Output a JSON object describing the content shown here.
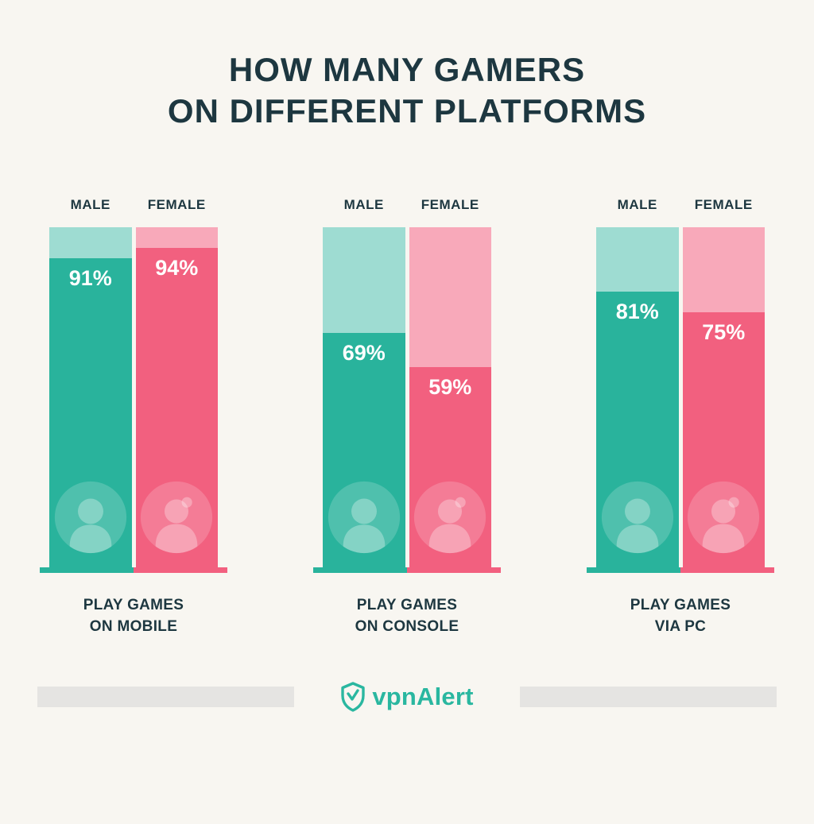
{
  "title": {
    "line1": "HOW MANY GAMERS",
    "line2": "ON DIFFERENT PLATFORMS"
  },
  "chart_data": {
    "type": "bar",
    "title": "HOW MANY GAMERS ON DIFFERENT PLATFORMS",
    "unit": "%",
    "ylim": [
      0,
      100
    ],
    "grid": false,
    "legend_position": "above-bars",
    "categories": [
      "PLAY GAMES\nON MOBILE",
      "PLAY GAMES\nON CONSOLE",
      "PLAY GAMES\nVIA PC"
    ],
    "series": [
      {
        "name": "MALE",
        "values": [
          91,
          69,
          81
        ],
        "fill_color": "#29b39c",
        "track_color": "#9edcd2"
      },
      {
        "name": "FEMALE",
        "values": [
          94,
          59,
          75
        ],
        "fill_color": "#f2607f",
        "track_color": "#f8a9ba"
      }
    ],
    "value_labels": [
      [
        "91%",
        "94%"
      ],
      [
        "69%",
        "59%"
      ],
      [
        "81%",
        "75%"
      ]
    ],
    "value_label_color": "#ffffff"
  },
  "footer": {
    "logo_bold": "vpn",
    "logo_regular": "Alert"
  },
  "colors": {
    "background": "#f8f6f1",
    "text": "#1d3740",
    "logo_teal": "#2ab7a0",
    "footer_bar": "#e5e4e2"
  }
}
